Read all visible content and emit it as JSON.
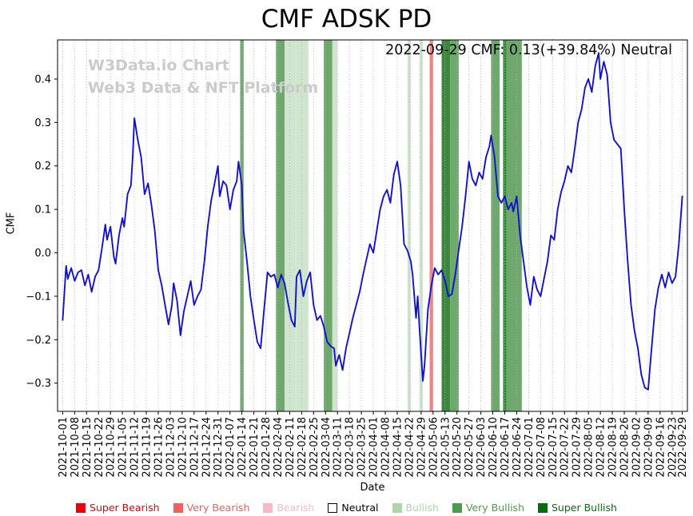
{
  "chart_data": {
    "type": "line",
    "title": "CMF ADSK PD",
    "xlabel": "Date",
    "ylabel": "CMF",
    "annotation": "2022-09-29 CMF: 0.13(+39.84%) Neutral",
    "current": {
      "date": "2022-09-29",
      "cmf": 0.13,
      "change_pct": "+39.84%",
      "signal": "Neutral"
    },
    "watermark": [
      "W3Data.io Chart",
      "Web3 Data & NFT Platform"
    ],
    "grid": "vertical-dotted",
    "ylim": [
      -0.365,
      0.49
    ],
    "y_ticks": [
      -0.3,
      -0.2,
      -0.1,
      0.0,
      0.1,
      0.2,
      0.3,
      0.4
    ],
    "x_ticks": [
      "2021-10-01",
      "2021-10-08",
      "2021-10-15",
      "2021-10-22",
      "2021-10-29",
      "2021-11-05",
      "2021-11-12",
      "2021-11-19",
      "2021-11-26",
      "2021-12-03",
      "2021-12-10",
      "2021-12-17",
      "2021-12-24",
      "2021-12-31",
      "2022-01-07",
      "2022-01-14",
      "2022-01-21",
      "2022-01-28",
      "2022-02-04",
      "2022-02-11",
      "2022-02-18",
      "2022-02-25",
      "2022-03-04",
      "2022-03-11",
      "2022-03-18",
      "2022-03-25",
      "2022-04-01",
      "2022-04-08",
      "2022-04-15",
      "2022-04-22",
      "2022-04-29",
      "2022-05-06",
      "2022-05-13",
      "2022-05-20",
      "2022-05-27",
      "2022-06-03",
      "2022-06-10",
      "2022-06-17",
      "2022-06-24",
      "2022-07-01",
      "2022-07-08",
      "2022-07-15",
      "2022-07-22",
      "2022-07-29",
      "2022-08-05",
      "2022-08-12",
      "2022-08-19",
      "2022-08-26",
      "2022-09-02",
      "2022-09-09",
      "2022-09-16",
      "2022-09-23",
      "2022-09-29"
    ],
    "line_color": "#1212cc",
    "band_colors": {
      "super_bearish": "#e8000b",
      "very_bearish": "#ef8484",
      "bearish": "#f6b9c5",
      "bullish": "#cfe5cd",
      "very_bullish": "#6ea86c",
      "super_bullish": "#3c873e"
    },
    "bands": [
      {
        "start": "2022-01-13",
        "end": "2022-01-15",
        "category": "very_bullish"
      },
      {
        "start": "2022-02-03",
        "end": "2022-02-08",
        "category": "very_bullish"
      },
      {
        "start": "2022-02-08",
        "end": "2022-02-15",
        "category": "bullish"
      },
      {
        "start": "2022-02-15",
        "end": "2022-02-22",
        "category": "bullish"
      },
      {
        "start": "2022-03-03",
        "end": "2022-03-08",
        "category": "very_bullish"
      },
      {
        "start": "2022-03-08",
        "end": "2022-03-11",
        "category": "bullish"
      },
      {
        "start": "2022-04-21",
        "end": "2022-04-23",
        "category": "bullish"
      },
      {
        "start": "2022-04-28",
        "end": "2022-04-30",
        "category": "bullish"
      },
      {
        "start": "2022-05-04",
        "end": "2022-05-06",
        "category": "very_bearish"
      },
      {
        "start": "2022-05-11",
        "end": "2022-05-16",
        "category": "super_bullish"
      },
      {
        "start": "2022-05-16",
        "end": "2022-05-21",
        "category": "very_bullish"
      },
      {
        "start": "2022-06-09",
        "end": "2022-06-14",
        "category": "very_bullish"
      },
      {
        "start": "2022-06-16",
        "end": "2022-06-18",
        "category": "super_bullish"
      },
      {
        "start": "2022-06-18",
        "end": "2022-06-27",
        "category": "very_bullish"
      }
    ],
    "series": [
      {
        "name": "CMF",
        "points": [
          [
            "2021-10-01",
            -0.155
          ],
          [
            "2021-10-03",
            -0.03
          ],
          [
            "2021-10-04",
            -0.06
          ],
          [
            "2021-10-06",
            -0.035
          ],
          [
            "2021-10-08",
            -0.065
          ],
          [
            "2021-10-10",
            -0.045
          ],
          [
            "2021-10-12",
            -0.04
          ],
          [
            "2021-10-14",
            -0.075
          ],
          [
            "2021-10-16",
            -0.05
          ],
          [
            "2021-10-18",
            -0.09
          ],
          [
            "2021-10-20",
            -0.055
          ],
          [
            "2021-10-22",
            -0.04
          ],
          [
            "2021-10-24",
            0.01
          ],
          [
            "2021-10-26",
            0.065
          ],
          [
            "2021-10-27",
            0.03
          ],
          [
            "2021-10-29",
            0.06
          ],
          [
            "2021-10-31",
            -0.01
          ],
          [
            "2021-11-01",
            -0.025
          ],
          [
            "2021-11-03",
            0.04
          ],
          [
            "2021-11-05",
            0.08
          ],
          [
            "2021-11-06",
            0.06
          ],
          [
            "2021-11-08",
            0.135
          ],
          [
            "2021-11-10",
            0.155
          ],
          [
            "2021-11-11",
            0.22
          ],
          [
            "2021-11-12",
            0.31
          ],
          [
            "2021-11-14",
            0.26
          ],
          [
            "2021-11-16",
            0.22
          ],
          [
            "2021-11-18",
            0.135
          ],
          [
            "2021-11-20",
            0.16
          ],
          [
            "2021-11-22",
            0.11
          ],
          [
            "2021-11-24",
            0.05
          ],
          [
            "2021-11-26",
            -0.04
          ],
          [
            "2021-11-28",
            -0.075
          ],
          [
            "2021-11-30",
            -0.12
          ],
          [
            "2021-12-02",
            -0.165
          ],
          [
            "2021-12-04",
            -0.12
          ],
          [
            "2021-12-05",
            -0.07
          ],
          [
            "2021-12-07",
            -0.11
          ],
          [
            "2021-12-09",
            -0.19
          ],
          [
            "2021-12-11",
            -0.135
          ],
          [
            "2021-12-13",
            -0.1
          ],
          [
            "2021-12-15",
            -0.065
          ],
          [
            "2021-12-17",
            -0.12
          ],
          [
            "2021-12-19",
            -0.1
          ],
          [
            "2021-12-21",
            -0.085
          ],
          [
            "2021-12-23",
            -0.02
          ],
          [
            "2021-12-25",
            0.06
          ],
          [
            "2021-12-27",
            0.12
          ],
          [
            "2021-12-29",
            0.16
          ],
          [
            "2021-12-31",
            0.2
          ],
          [
            "2022-01-01",
            0.13
          ],
          [
            "2022-01-03",
            0.165
          ],
          [
            "2022-01-05",
            0.155
          ],
          [
            "2022-01-07",
            0.1
          ],
          [
            "2022-01-09",
            0.145
          ],
          [
            "2022-01-11",
            0.165
          ],
          [
            "2022-01-12",
            0.21
          ],
          [
            "2022-01-14",
            0.155
          ],
          [
            "2022-01-15",
            0.05
          ],
          [
            "2022-01-17",
            -0.02
          ],
          [
            "2022-01-19",
            -0.1
          ],
          [
            "2022-01-21",
            -0.155
          ],
          [
            "2022-01-23",
            -0.205
          ],
          [
            "2022-01-25",
            -0.22
          ],
          [
            "2022-01-27",
            -0.13
          ],
          [
            "2022-01-29",
            -0.045
          ],
          [
            "2022-01-31",
            -0.055
          ],
          [
            "2022-02-02",
            -0.05
          ],
          [
            "2022-02-04",
            -0.08
          ],
          [
            "2022-02-06",
            -0.05
          ],
          [
            "2022-02-08",
            -0.07
          ],
          [
            "2022-02-10",
            -0.115
          ],
          [
            "2022-02-12",
            -0.155
          ],
          [
            "2022-02-14",
            -0.17
          ],
          [
            "2022-02-15",
            -0.055
          ],
          [
            "2022-02-17",
            -0.04
          ],
          [
            "2022-02-19",
            -0.1
          ],
          [
            "2022-02-21",
            -0.065
          ],
          [
            "2022-02-23",
            -0.045
          ],
          [
            "2022-02-25",
            -0.12
          ],
          [
            "2022-02-27",
            -0.155
          ],
          [
            "2022-03-01",
            -0.145
          ],
          [
            "2022-03-03",
            -0.17
          ],
          [
            "2022-03-05",
            -0.205
          ],
          [
            "2022-03-07",
            -0.215
          ],
          [
            "2022-03-09",
            -0.22
          ],
          [
            "2022-03-10",
            -0.26
          ],
          [
            "2022-03-12",
            -0.235
          ],
          [
            "2022-03-14",
            -0.27
          ],
          [
            "2022-03-16",
            -0.22
          ],
          [
            "2022-03-18",
            -0.185
          ],
          [
            "2022-03-20",
            -0.15
          ],
          [
            "2022-03-22",
            -0.12
          ],
          [
            "2022-03-24",
            -0.09
          ],
          [
            "2022-03-26",
            -0.05
          ],
          [
            "2022-03-28",
            -0.015
          ],
          [
            "2022-03-30",
            0.02
          ],
          [
            "2022-04-01",
            0.0
          ],
          [
            "2022-04-03",
            0.05
          ],
          [
            "2022-04-05",
            0.1
          ],
          [
            "2022-04-07",
            0.13
          ],
          [
            "2022-04-09",
            0.145
          ],
          [
            "2022-04-11",
            0.115
          ],
          [
            "2022-04-13",
            0.18
          ],
          [
            "2022-04-15",
            0.21
          ],
          [
            "2022-04-17",
            0.155
          ],
          [
            "2022-04-19",
            0.02
          ],
          [
            "2022-04-21",
            0.005
          ],
          [
            "2022-04-23",
            -0.02
          ],
          [
            "2022-04-24",
            -0.05
          ],
          [
            "2022-04-26",
            -0.15
          ],
          [
            "2022-04-27",
            -0.1
          ],
          [
            "2022-04-28",
            -0.17
          ],
          [
            "2022-04-30",
            -0.295
          ],
          [
            "2022-05-01",
            -0.26
          ],
          [
            "2022-05-03",
            -0.13
          ],
          [
            "2022-05-05",
            -0.075
          ],
          [
            "2022-05-07",
            -0.035
          ],
          [
            "2022-05-09",
            -0.05
          ],
          [
            "2022-05-11",
            -0.04
          ],
          [
            "2022-05-13",
            -0.065
          ],
          [
            "2022-05-15",
            -0.1
          ],
          [
            "2022-05-17",
            -0.095
          ],
          [
            "2022-05-19",
            -0.05
          ],
          [
            "2022-05-21",
            0.005
          ],
          [
            "2022-05-23",
            0.06
          ],
          [
            "2022-05-25",
            0.13
          ],
          [
            "2022-05-27",
            0.21
          ],
          [
            "2022-05-29",
            0.17
          ],
          [
            "2022-05-31",
            0.155
          ],
          [
            "2022-06-02",
            0.185
          ],
          [
            "2022-06-04",
            0.17
          ],
          [
            "2022-06-06",
            0.22
          ],
          [
            "2022-06-08",
            0.245
          ],
          [
            "2022-06-09",
            0.27
          ],
          [
            "2022-06-11",
            0.22
          ],
          [
            "2022-06-13",
            0.13
          ],
          [
            "2022-06-15",
            0.115
          ],
          [
            "2022-06-17",
            0.13
          ],
          [
            "2022-06-19",
            0.1
          ],
          [
            "2022-06-21",
            0.115
          ],
          [
            "2022-06-22",
            0.095
          ],
          [
            "2022-06-24",
            0.13
          ],
          [
            "2022-06-26",
            0.04
          ],
          [
            "2022-06-28",
            -0.02
          ],
          [
            "2022-06-30",
            -0.08
          ],
          [
            "2022-07-02",
            -0.12
          ],
          [
            "2022-07-04",
            -0.055
          ],
          [
            "2022-07-06",
            -0.085
          ],
          [
            "2022-07-08",
            -0.1
          ],
          [
            "2022-07-10",
            -0.06
          ],
          [
            "2022-07-12",
            -0.02
          ],
          [
            "2022-07-14",
            0.04
          ],
          [
            "2022-07-16",
            0.03
          ],
          [
            "2022-07-18",
            0.1
          ],
          [
            "2022-07-20",
            0.14
          ],
          [
            "2022-07-22",
            0.165
          ],
          [
            "2022-07-24",
            0.2
          ],
          [
            "2022-07-26",
            0.185
          ],
          [
            "2022-07-28",
            0.24
          ],
          [
            "2022-07-30",
            0.3
          ],
          [
            "2022-08-01",
            0.33
          ],
          [
            "2022-08-03",
            0.38
          ],
          [
            "2022-08-05",
            0.4
          ],
          [
            "2022-08-07",
            0.37
          ],
          [
            "2022-08-09",
            0.43
          ],
          [
            "2022-08-11",
            0.46
          ],
          [
            "2022-08-12",
            0.4
          ],
          [
            "2022-08-14",
            0.44
          ],
          [
            "2022-08-16",
            0.41
          ],
          [
            "2022-08-18",
            0.3
          ],
          [
            "2022-08-20",
            0.26
          ],
          [
            "2022-08-22",
            0.25
          ],
          [
            "2022-08-24",
            0.24
          ],
          [
            "2022-08-26",
            0.1
          ],
          [
            "2022-08-28",
            -0.02
          ],
          [
            "2022-08-30",
            -0.12
          ],
          [
            "2022-09-01",
            -0.18
          ],
          [
            "2022-09-03",
            -0.22
          ],
          [
            "2022-09-05",
            -0.28
          ],
          [
            "2022-09-07",
            -0.31
          ],
          [
            "2022-09-09",
            -0.315
          ],
          [
            "2022-09-11",
            -0.22
          ],
          [
            "2022-09-13",
            -0.13
          ],
          [
            "2022-09-15",
            -0.08
          ],
          [
            "2022-09-17",
            -0.05
          ],
          [
            "2022-09-19",
            -0.08
          ],
          [
            "2022-09-21",
            -0.045
          ],
          [
            "2022-09-23",
            -0.07
          ],
          [
            "2022-09-25",
            -0.055
          ],
          [
            "2022-09-27",
            0.02
          ],
          [
            "2022-09-29",
            0.13
          ]
        ]
      }
    ]
  },
  "legend": {
    "items": [
      {
        "label": "Super Bearish",
        "color": "#e8000b",
        "swatch": "#e8000b"
      },
      {
        "label": "Very Bearish",
        "color": "#f0605e",
        "swatch": "#f0605e"
      },
      {
        "label": "Bearish",
        "color": "#f6b9c5",
        "swatch": "#f6b9c5"
      },
      {
        "label": "Neutral",
        "color": "#000000",
        "swatch": "#ffffff",
        "border": "#000000"
      },
      {
        "label": "Bullish",
        "color": "#aed4ac",
        "swatch": "#aed4ac"
      },
      {
        "label": "Very Bullish",
        "color": "#4a9d4a",
        "swatch": "#4a9d4a"
      },
      {
        "label": "Super Bullish",
        "color": "#076d0c",
        "swatch": "#076d0c"
      }
    ]
  }
}
